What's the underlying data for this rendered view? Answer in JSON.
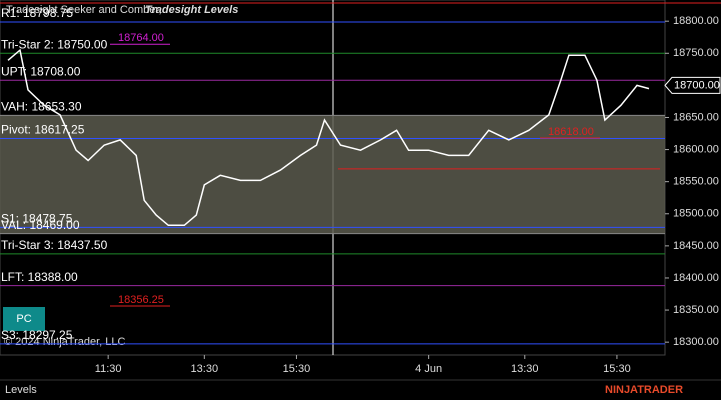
{
  "chart_data": {
    "type": "line",
    "indicator_title": "Tradesight Seeker and Comber,",
    "indicator_title_2": "Tradesight Levels",
    "copyright": "© 2024 NinjaTrader, LLC",
    "tab": "Levels",
    "button": "PC",
    "logo": "NINJATRADER",
    "series": [
      {
        "name": "Price",
        "color": "#ffffff",
        "x": [
          2,
          5,
          7,
          11,
          15,
          19,
          22,
          26,
          30,
          34,
          36,
          39,
          42,
          46,
          49,
          51,
          55,
          60,
          65,
          70,
          75,
          79,
          81,
          85,
          90,
          95,
          99,
          102,
          107,
          112,
          117,
          122,
          127,
          132,
          137,
          140,
          142,
          146,
          149,
          151,
          155,
          159,
          162
        ],
        "values": [
          18739,
          18755,
          18693,
          18669,
          18654,
          18599,
          18583,
          18607,
          18615,
          18591,
          18521,
          18498,
          18482,
          18482,
          18498,
          18545,
          18560,
          18552,
          18552,
          18568,
          18591,
          18607,
          18646,
          18607,
          18599,
          18615,
          18630,
          18599,
          18599,
          18591,
          18591,
          18630,
          18615,
          18630,
          18654,
          18708,
          18747,
          18747,
          18708,
          18646,
          18669,
          18700,
          18695
        ]
      }
    ],
    "levels": [
      {
        "label": "R1: 18798.75",
        "value": 18798.75,
        "color": "#3050ff"
      },
      {
        "label": "Tri-Star 2: 18750.00",
        "value": 18750.0,
        "color": "#1f8a2a"
      },
      {
        "label": "UPT: 18708.00",
        "value": 18708.0,
        "color": "#9a2aa0"
      },
      {
        "label": "VAH: 18653.30",
        "value": 18653.3,
        "color": "#888888"
      },
      {
        "label": "Pivot: 18617.25",
        "value": 18617.25,
        "color": "#3050ff"
      },
      {
        "label": "S1: 18478.75",
        "value": 18478.75,
        "color": "#3050ff"
      },
      {
        "label": "VAL: 18469.00",
        "value": 18469.0,
        "color": "#888888"
      },
      {
        "label": "Tri-Star 3: 18437.50",
        "value": 18437.5,
        "color": "#1f8a2a"
      },
      {
        "label": "LFT: 18388.00",
        "value": 18388.0,
        "color": "#9a2aa0"
      },
      {
        "label": "S3: 18297.25",
        "value": 18297.25,
        "color": "#3050ff"
      }
    ],
    "marks": [
      {
        "label": "18764.00",
        "value": 18764.0,
        "color": "#d020d0"
      },
      {
        "label": "18356.25",
        "value": 18356.25,
        "color": "#e02020"
      },
      {
        "label": "18618.00",
        "value": 18618.0,
        "color": "#e02020"
      }
    ],
    "red_line": 18570,
    "last_price": {
      "value": 18700,
      "label": "18700.00"
    },
    "xlim": [
      0,
      166
    ],
    "xticks": [
      {
        "value": 27,
        "label": "11:30"
      },
      {
        "value": 51,
        "label": "13:30"
      },
      {
        "value": 74,
        "label": "15:30"
      },
      {
        "value": 107,
        "label": "4 Jun"
      },
      {
        "value": 131,
        "label": "13:30"
      },
      {
        "value": 154,
        "label": "15:30"
      }
    ],
    "ylim": [
      18280,
      18833
    ],
    "yticks": [
      {
        "value": 18300,
        "label": "18300.00"
      },
      {
        "value": 18350,
        "label": "18350.00"
      },
      {
        "value": 18400,
        "label": "18400.00"
      },
      {
        "value": 18450,
        "label": "18450.00"
      },
      {
        "value": 18500,
        "label": "18500.00"
      },
      {
        "value": 18550,
        "label": "18550.00"
      },
      {
        "value": 18600,
        "label": "18600.00"
      },
      {
        "value": 18650,
        "label": "18650.00"
      },
      {
        "value": 18700,
        "label": "18700.00"
      },
      {
        "value": 18750,
        "label": "18750.00"
      },
      {
        "value": 18800,
        "label": "18800.00"
      }
    ]
  }
}
